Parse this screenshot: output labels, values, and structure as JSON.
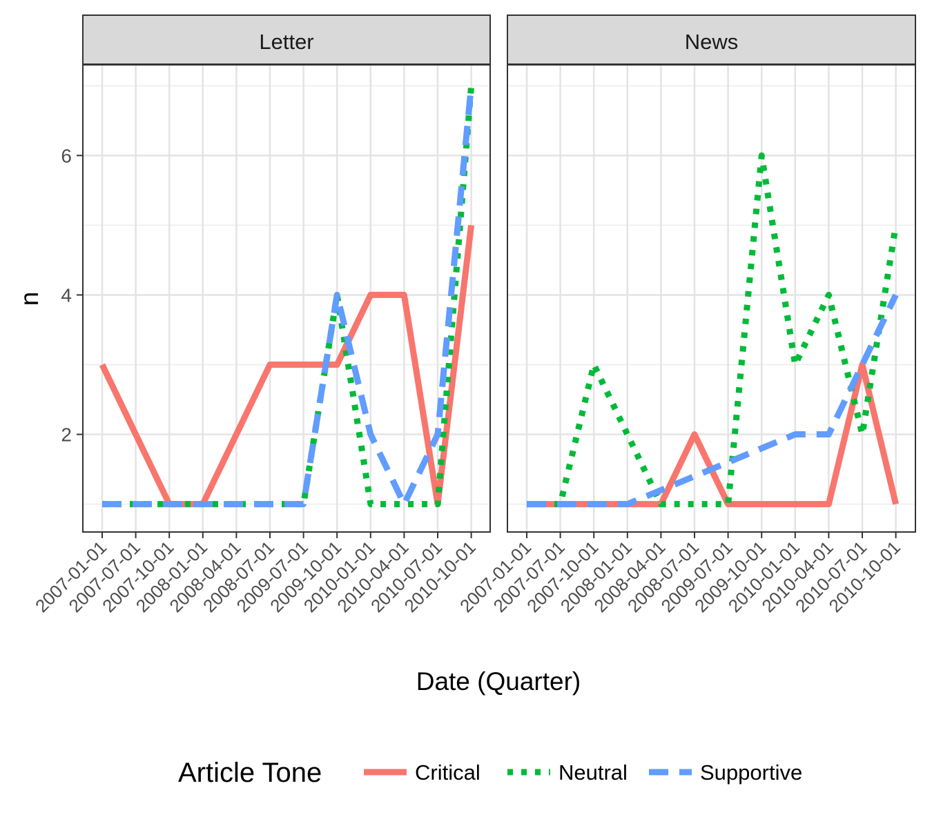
{
  "chart_data": {
    "type": "line",
    "xlabel": "Date (Quarter)",
    "ylabel": "n",
    "yticks": [
      2,
      4,
      6
    ],
    "ylim": [
      0.6,
      7.3
    ],
    "grid": true,
    "legend": {
      "title": "Article Tone",
      "position": "bottom",
      "entries": [
        "Critical",
        "Neutral",
        "Supportive"
      ]
    },
    "colors": {
      "Critical": "#F8766D",
      "Neutral": "#00BA38",
      "Supportive": "#619CFF"
    },
    "panels": [
      {
        "label": "Letter",
        "x": [
          "2007-01-01",
          "2007-07-01",
          "2007-10-01",
          "2008-01-01",
          "2008-04-01",
          "2008-07-01",
          "2009-07-01",
          "2009-10-01",
          "2010-01-01",
          "2010-04-01",
          "2010-07-01",
          "2010-10-01"
        ],
        "series": [
          {
            "name": "Critical",
            "values": [
              3,
              2,
              1,
              1,
              2,
              3,
              3,
              3,
              4,
              4,
              1,
              5
            ]
          },
          {
            "name": "Neutral",
            "values": [
              1,
              1,
              1,
              1,
              1,
              1,
              1,
              4,
              1,
              1,
              1,
              7
            ]
          },
          {
            "name": "Supportive",
            "values": [
              1,
              1,
              1,
              1,
              1,
              1,
              1,
              4,
              2,
              1,
              2,
              7
            ]
          }
        ]
      },
      {
        "label": "News",
        "x": [
          "2007-01-01",
          "2007-07-01",
          "2007-10-01",
          "2008-01-01",
          "2008-04-01",
          "2008-07-01",
          "2009-07-01",
          "2009-10-01",
          "2010-01-01",
          "2010-04-01",
          "2010-07-01",
          "2010-10-01"
        ],
        "series": [
          {
            "name": "Critical",
            "values": [
              1,
              1,
              1,
              1,
              1,
              2,
              1,
              1,
              1,
              1,
              3,
              1
            ]
          },
          {
            "name": "Neutral",
            "values": [
              1,
              1,
              3,
              2,
              1,
              1,
              1,
              6,
              3,
              4,
              2,
              5
            ]
          },
          {
            "name": "Supportive",
            "values": [
              1,
              1,
              1,
              1,
              1.2,
              1.4,
              1.6,
              1.8,
              2,
              2,
              3,
              4
            ]
          }
        ]
      }
    ]
  }
}
